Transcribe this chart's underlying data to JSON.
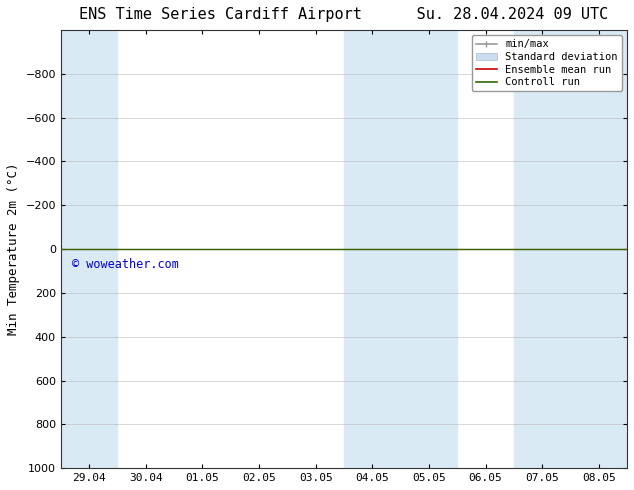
{
  "title_left": "ENS Time Series Cardiff Airport",
  "title_right": "Su. 28.04.2024 09 UTC",
  "ylabel": "Min Temperature 2m (°C)",
  "xlim_dates": [
    "29.04",
    "30.04",
    "01.05",
    "02.05",
    "03.05",
    "04.05",
    "05.05",
    "06.05",
    "07.05",
    "08.05"
  ],
  "ylim_min": -1000,
  "ylim_max": 1000,
  "yticks": [
    -800,
    -600,
    -400,
    -200,
    0,
    200,
    400,
    600,
    800,
    1000
  ],
  "bg_color": "#ffffff",
  "plot_bg_color": "#ffffff",
  "band_color": "#daeaf5",
  "green_line_y": 0,
  "green_line_color": "#336600",
  "red_line_color": "#cc0000",
  "watermark": "© woweather.com",
  "watermark_color": "#0000cc",
  "title_fontsize": 11,
  "tick_fontsize": 8,
  "label_fontsize": 9,
  "legend_fontsize": 7.5
}
